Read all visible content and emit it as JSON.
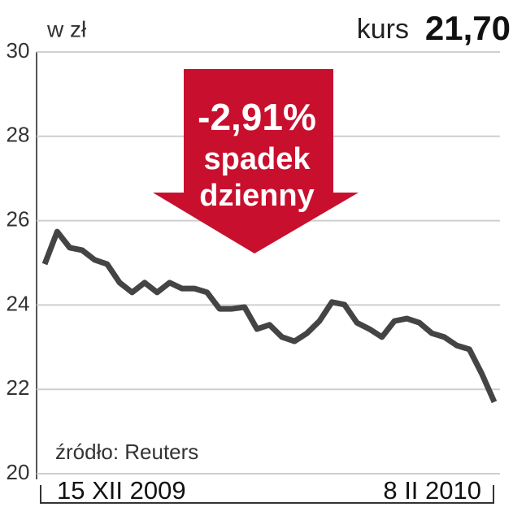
{
  "chart_data": {
    "type": "line",
    "unit_label": "w zł",
    "headline_label": "kurs",
    "headline_value": "21,70",
    "arrow_lines": [
      "-2,91%",
      "spadek",
      "dzienny"
    ],
    "source": "źródło: Reuters",
    "categories": [
      "15 XII 2009",
      null,
      null,
      null,
      null,
      null,
      null,
      null,
      null,
      null,
      null,
      null,
      null,
      null,
      null,
      null,
      null,
      null,
      null,
      null,
      null,
      null,
      null,
      null,
      null,
      null,
      null,
      null,
      null,
      null,
      null,
      null,
      null,
      null,
      null,
      null,
      "8 II 2010"
    ],
    "series": [
      {
        "name": "kurs",
        "color": "#444444",
        "values": [
          24.97,
          25.74,
          25.36,
          25.3,
          25.07,
          24.97,
          24.53,
          24.3,
          24.53,
          24.3,
          24.53,
          24.39,
          24.39,
          24.3,
          23.91,
          23.91,
          23.95,
          23.43,
          23.53,
          23.24,
          23.14,
          23.33,
          23.62,
          24.07,
          24.01,
          23.58,
          23.43,
          23.24,
          23.62,
          23.68,
          23.58,
          23.33,
          23.24,
          23.04,
          22.95,
          22.37,
          21.7
        ]
      }
    ],
    "ylim": [
      20,
      30
    ],
    "yticks": [
      20,
      22,
      24,
      26,
      28,
      30
    ],
    "grid": true,
    "arrow_color": "#c8102e"
  }
}
